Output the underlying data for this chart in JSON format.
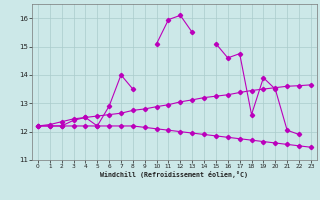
{
  "title": "",
  "xlabel": "Windchill (Refroidissement éolien,°C)",
  "background_color": "#cce8e8",
  "grid_color": "#aacccc",
  "line_color": "#bb00bb",
  "xlim": [
    -0.5,
    23.5
  ],
  "ylim": [
    11.0,
    16.5
  ],
  "yticks": [
    11,
    12,
    13,
    14,
    15,
    16
  ],
  "xticks": [
    0,
    1,
    2,
    3,
    4,
    5,
    6,
    7,
    8,
    9,
    10,
    11,
    12,
    13,
    14,
    15,
    16,
    17,
    18,
    19,
    20,
    21,
    22,
    23
  ],
  "curve_main": [
    12.2,
    12.2,
    12.2,
    12.4,
    12.5,
    12.2,
    12.9,
    14.0,
    13.5,
    null,
    15.1,
    15.95,
    16.1,
    15.5,
    null,
    15.1,
    14.6,
    14.75,
    12.6,
    13.9,
    13.5,
    12.05,
    11.9,
    null
  ],
  "curve_down": [
    12.2,
    12.2,
    12.2,
    12.2,
    12.2,
    12.2,
    12.2,
    12.2,
    12.2,
    12.15,
    12.1,
    12.05,
    12.0,
    11.95,
    11.9,
    11.85,
    11.8,
    11.75,
    11.7,
    11.65,
    11.6,
    11.55,
    11.5,
    11.45
  ],
  "curve_up": [
    12.2,
    12.25,
    12.35,
    12.45,
    12.5,
    12.55,
    12.6,
    12.65,
    12.75,
    12.8,
    12.88,
    12.95,
    13.05,
    13.12,
    13.2,
    13.25,
    13.3,
    13.38,
    13.45,
    13.5,
    13.55,
    13.6,
    13.62,
    13.65
  ]
}
